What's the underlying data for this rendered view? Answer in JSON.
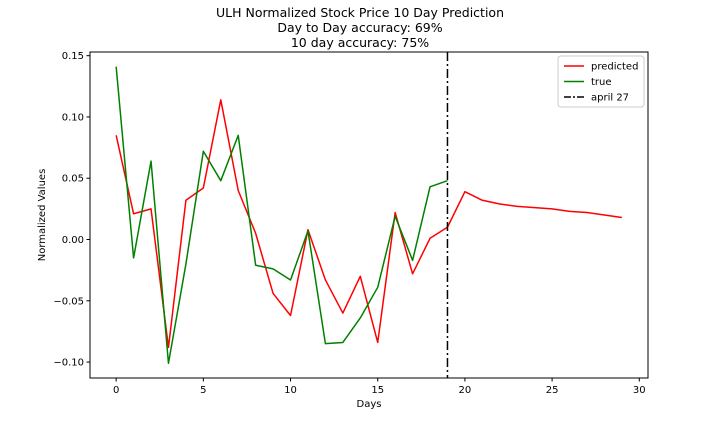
{
  "chart_data": {
    "type": "line",
    "title_lines": [
      "ULH Normalized Stock Price 10 Day Prediction",
      "Day to Day accuracy: 69%",
      "10 day accuracy: 75%"
    ],
    "xlabel": "Days",
    "ylabel": "Normalized Values",
    "xlim": [
      -1.5,
      30.5
    ],
    "ylim": [
      -0.113,
      0.153
    ],
    "x_ticks": [
      0,
      5,
      10,
      15,
      20,
      25,
      30
    ],
    "y_ticks": [
      -0.1,
      -0.05,
      0.0,
      0.05,
      0.1,
      0.15
    ],
    "y_tick_labels": [
      "−0.10",
      "−0.05",
      "0.00",
      "0.05",
      "0.10",
      "0.15"
    ],
    "grid": false,
    "legend_position": "top-right",
    "series": [
      {
        "name": "predicted",
        "color": "#ff0000",
        "x": [
          0,
          1,
          2,
          3,
          4,
          5,
          6,
          7,
          8,
          9,
          10,
          11,
          12,
          13,
          14,
          15,
          16,
          17,
          18,
          19,
          20,
          21,
          22,
          23,
          24,
          25,
          26,
          27,
          28,
          29
        ],
        "values": [
          0.085,
          0.021,
          0.025,
          -0.088,
          0.032,
          0.042,
          0.114,
          0.04,
          0.005,
          -0.044,
          -0.062,
          0.008,
          -0.033,
          -0.06,
          -0.03,
          -0.084,
          0.022,
          -0.028,
          0.001,
          0.01,
          0.039,
          0.032,
          0.029,
          0.027,
          0.026,
          0.025,
          0.023,
          0.022,
          0.02,
          0.018
        ]
      },
      {
        "name": "true",
        "color": "#008000",
        "x": [
          0,
          1,
          2,
          3,
          4,
          5,
          6,
          7,
          8,
          9,
          10,
          11,
          12,
          13,
          14,
          15,
          16,
          17,
          18,
          19
        ],
        "values": [
          0.141,
          -0.015,
          0.064,
          -0.101,
          -0.02,
          0.072,
          0.048,
          0.085,
          -0.021,
          -0.024,
          -0.033,
          0.007,
          -0.085,
          -0.084,
          -0.064,
          -0.039,
          0.019,
          -0.017,
          0.043,
          0.048
        ]
      }
    ],
    "vline": {
      "x": 19,
      "name": "april 27",
      "color": "#000000",
      "style": "dashdot"
    }
  }
}
